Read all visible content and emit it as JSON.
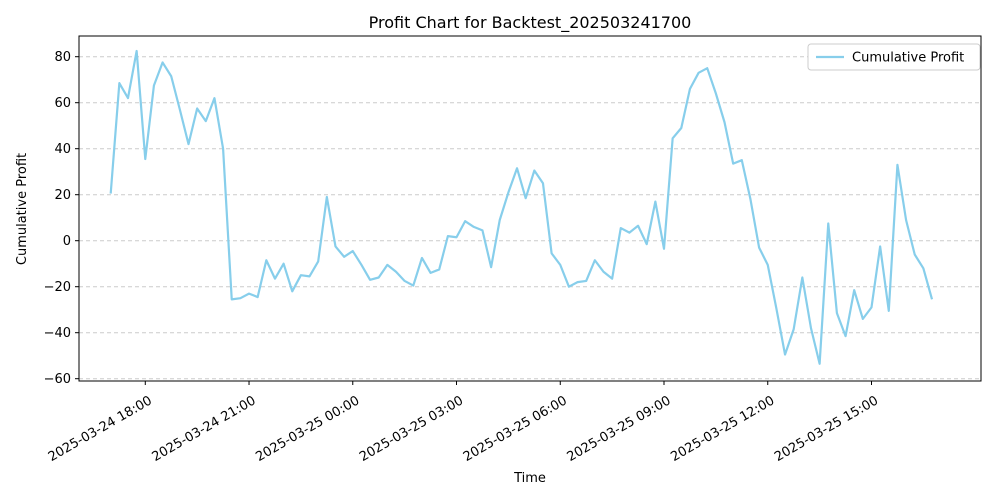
{
  "chart_data": {
    "type": "line",
    "title": "Profit Chart for Backtest_202503241700",
    "xlabel": "Time",
    "ylabel": "Cumulative Profit",
    "x_start": "2025-03-24 17:00",
    "x_step_minutes": 15,
    "xlim": [
      "2025-03-24 16:05",
      "2025-03-25 18:10"
    ],
    "ylim": [
      -61,
      89
    ],
    "yticks": [
      -60,
      -40,
      -20,
      0,
      20,
      40,
      60,
      80
    ],
    "xticks": [
      "2025-03-24 18:00",
      "2025-03-24 21:00",
      "2025-03-25 00:00",
      "2025-03-25 03:00",
      "2025-03-25 06:00",
      "2025-03-25 09:00",
      "2025-03-25 12:00",
      "2025-03-25 15:00"
    ],
    "grid": "y-dashed",
    "legend_position": "top-right",
    "series": [
      {
        "name": "Cumulative Profit",
        "color": "#87CEEB",
        "values": [
          20.5,
          68.5,
          62,
          82.5,
          35.5,
          67.5,
          77.5,
          71.5,
          57,
          42,
          57.5,
          52,
          62,
          40,
          -25.5,
          -25,
          -23,
          -24.5,
          -8.5,
          -16.5,
          -10,
          -22,
          -15,
          -15.5,
          -9,
          19,
          -2.5,
          -7,
          -4.5,
          -10.5,
          -17,
          -16,
          -10.5,
          -13.5,
          -17.5,
          -19.5,
          -7.5,
          -14,
          -12.5,
          2,
          1.5,
          8.5,
          6,
          4.5,
          -11.5,
          9,
          21,
          31.5,
          18.5,
          30.5,
          25,
          -5.5,
          -10.5,
          -20,
          -18,
          -17.5,
          -8.5,
          -13.5,
          -16.5,
          5.5,
          3.5,
          6.5,
          -1.5,
          17,
          -3.5,
          44.5,
          49,
          66,
          73,
          75,
          64,
          51.5,
          33.5,
          35,
          18,
          -3,
          -10.5,
          -29.5,
          -49.5,
          -38.5,
          -16,
          -38,
          -53.5,
          7.5,
          -31.5,
          -41.5,
          -21.5,
          -34,
          -29,
          -2.5,
          -30.5,
          33,
          9,
          -6,
          -12,
          -25.5
        ]
      }
    ]
  }
}
